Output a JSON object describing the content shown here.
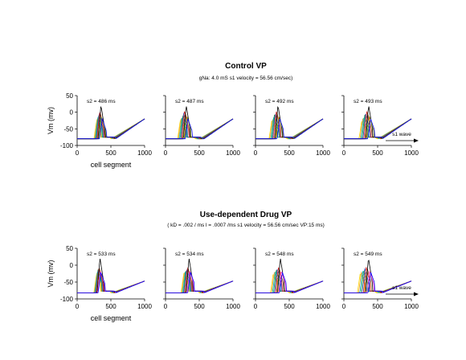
{
  "chart_data": [
    {
      "type": "line",
      "title": "Control VP",
      "subtitle": "gNa: 4.0 mS  s1 velocity = 56.56 cm/sec)",
      "ylabel": "Vm (mv)",
      "xlabel": "cell segment",
      "xlim": [
        0,
        1000
      ],
      "ylim": [
        -100,
        50
      ],
      "xticks": [
        "0",
        "500",
        "1000"
      ],
      "yticks": [
        "50",
        "0",
        "-50",
        "-100"
      ],
      "grid": false,
      "panels": [
        {
          "label": "s2 = 486 ms",
          "s2_ms": 486,
          "peak_x": 330,
          "spread": 90
        },
        {
          "label": "s2 = 487 ms",
          "s2_ms": 487,
          "peak_x": 275,
          "spread": 125
        },
        {
          "label": "s2 = 492 ms",
          "s2_ms": 492,
          "peak_x": 300,
          "spread": 130
        },
        {
          "label": "s2 = 493 ms",
          "s2_ms": 493,
          "peak_x": 330,
          "spread": 145
        }
      ],
      "annotation": "s1 wave",
      "series_colors": [
        "#ffd400",
        "#ff9f1c",
        "#00b3d8",
        "#2ca02c",
        "#1f4fd1",
        "#d62728",
        "#a05a2c",
        "#000000",
        "#7a8f00",
        "#0000ff"
      ]
    },
    {
      "type": "line",
      "title": "Use-dependent Drug VP",
      "subtitle": "( kD = .002 / ms   l = .0007 /ms  s1 velocity = 56.56 cm/sec VP:15 ms)",
      "ylabel": "Vm (mv)",
      "xlabel": "cell segment",
      "xlim": [
        0,
        1000
      ],
      "ylim": [
        -100,
        50
      ],
      "xticks": [
        "0",
        "500",
        "1000"
      ],
      "yticks": [
        "50",
        "0",
        "-50",
        "-100"
      ],
      "grid": false,
      "panels": [
        {
          "label": "s2 = 533 ms",
          "s2_ms": 533,
          "peak_x": 320,
          "spread": 70
        },
        {
          "label": "s2 = 534 ms",
          "s2_ms": 534,
          "peak_x": 320,
          "spread": 110
        },
        {
          "label": "s2 = 548 ms",
          "s2_ms": 548,
          "peak_x": 330,
          "spread": 150
        },
        {
          "label": "s2 = 549 ms",
          "s2_ms": 549,
          "peak_x": 320,
          "spread": 175
        }
      ],
      "annotation": "s1 wave",
      "series_colors": [
        "#ffd400",
        "#ff9f1c",
        "#00b3d8",
        "#2ca02c",
        "#1f4fd1",
        "#d62728",
        "#a05a2c",
        "#000000",
        "#ff33cc",
        "#0000ff"
      ]
    }
  ]
}
